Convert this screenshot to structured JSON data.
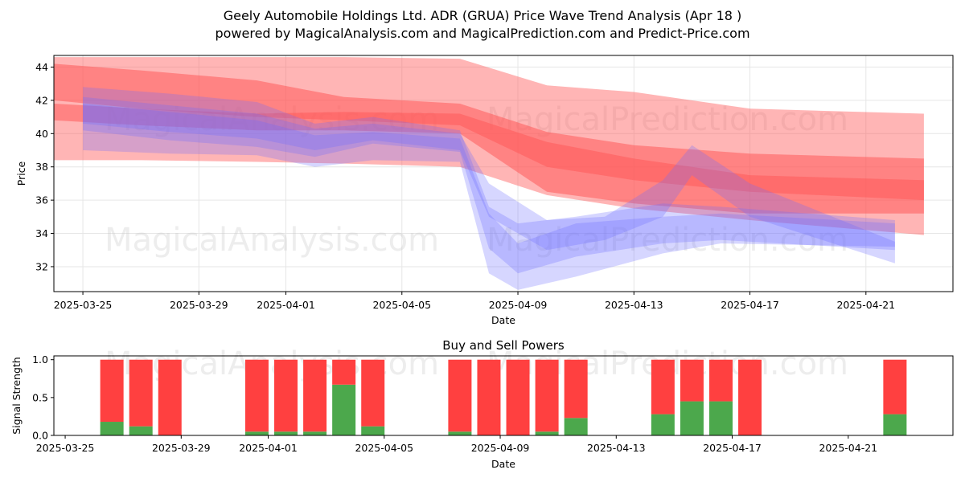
{
  "title_line1": "Geely Automobile Holdings Ltd. ADR (GRUA) Price Wave Trend Analysis (Apr 18 )",
  "title_line2": "powered by MagicalAnalysis.com and MagicalPrediction.com and Predict-Price.com",
  "watermarks": [
    "MagicalAnalysis.com",
    "MagicalPrediction.com"
  ],
  "colors": {
    "sell": "#ff4040",
    "buy": "#4ca84c",
    "red_band": "#ff5a5a",
    "blue_band": "#6a6aff"
  },
  "chart_data": [
    {
      "type": "area",
      "title": "",
      "xlabel": "Date",
      "ylabel": "Price",
      "xlim": [
        "2025-03-24",
        "2025-04-24"
      ],
      "ylim": [
        30.5,
        44.7
      ],
      "x_ticks": [
        "2025-03-25",
        "2025-03-29",
        "2025-04-01",
        "2025-04-05",
        "2025-04-09",
        "2025-04-13",
        "2025-04-17",
        "2025-04-21"
      ],
      "y_ticks": [
        32,
        34,
        36,
        38,
        40,
        42,
        44
      ],
      "grid": true,
      "red_bands": [
        {
          "x": [
            "2025-03-24",
            "2025-03-27",
            "2025-03-31",
            "2025-04-03",
            "2025-04-07",
            "2025-04-10",
            "2025-04-13",
            "2025-04-17",
            "2025-04-23"
          ],
          "upper": [
            44.6,
            44.6,
            44.6,
            44.6,
            44.5,
            42.9,
            42.5,
            41.5,
            41.2
          ],
          "lower": [
            38.4,
            38.4,
            38.3,
            38.2,
            38.0,
            36.3,
            35.5,
            34.8,
            33.9
          ]
        },
        {
          "x": [
            "2025-03-24",
            "2025-03-27",
            "2025-03-31",
            "2025-04-03",
            "2025-04-07",
            "2025-04-10",
            "2025-04-13",
            "2025-04-17",
            "2025-04-23"
          ],
          "upper": [
            44.2,
            43.8,
            43.2,
            42.2,
            41.8,
            40.1,
            39.3,
            38.8,
            38.5
          ],
          "lower": [
            42.0,
            41.5,
            41.0,
            40.8,
            40.5,
            38.0,
            37.2,
            36.5,
            36.0
          ]
        },
        {
          "x": [
            "2025-03-24",
            "2025-03-27",
            "2025-03-31",
            "2025-04-03",
            "2025-04-07",
            "2025-04-10",
            "2025-04-13",
            "2025-04-17",
            "2025-04-23"
          ],
          "upper": [
            41.8,
            41.5,
            41.2,
            41.3,
            41.2,
            39.5,
            38.5,
            37.5,
            37.2
          ],
          "lower": [
            40.8,
            40.5,
            40.2,
            40.2,
            40.0,
            36.5,
            35.8,
            35.2,
            35.2
          ]
        }
      ],
      "blue_bands": [
        {
          "x": [
            "2025-03-25",
            "2025-03-28",
            "2025-03-31",
            "2025-04-02",
            "2025-04-04",
            "2025-04-07",
            "2025-04-08",
            "2025-04-09",
            "2025-04-11",
            "2025-04-14",
            "2025-04-16",
            "2025-04-22"
          ],
          "upper": [
            42.8,
            42.4,
            41.9,
            40.6,
            41.0,
            40.2,
            35.6,
            34.6,
            35.0,
            35.8,
            35.6,
            34.8
          ],
          "lower": [
            40.2,
            39.6,
            39.2,
            38.6,
            39.4,
            38.9,
            33.1,
            31.6,
            32.6,
            33.4,
            33.6,
            33.0
          ]
        },
        {
          "x": [
            "2025-03-25",
            "2025-03-28",
            "2025-03-31",
            "2025-04-02",
            "2025-04-04",
            "2025-04-07",
            "2025-04-08",
            "2025-04-09",
            "2025-04-11",
            "2025-04-14",
            "2025-04-16",
            "2025-04-22"
          ],
          "upper": [
            41.8,
            41.3,
            40.8,
            39.9,
            40.1,
            39.7,
            35.2,
            33.4,
            34.6,
            35.0,
            35.2,
            34.6
          ],
          "lower": [
            39.0,
            38.8,
            38.7,
            38.0,
            38.4,
            38.3,
            31.6,
            30.6,
            31.4,
            32.8,
            33.4,
            33.2
          ]
        },
        {
          "x": [
            "2025-03-25",
            "2025-03-28",
            "2025-03-31",
            "2025-04-02",
            "2025-04-04",
            "2025-04-07",
            "2025-04-08",
            "2025-04-10",
            "2025-04-12",
            "2025-04-14",
            "2025-04-15",
            "2025-04-17",
            "2025-04-22"
          ],
          "upper": [
            42.2,
            41.7,
            41.2,
            40.3,
            40.6,
            40.0,
            37.0,
            34.8,
            35.0,
            37.2,
            39.3,
            37.0,
            33.5
          ],
          "lower": [
            40.6,
            40.1,
            39.7,
            39.0,
            39.6,
            39.0,
            35.0,
            33.0,
            33.6,
            35.0,
            37.5,
            35.0,
            32.2
          ]
        }
      ]
    },
    {
      "type": "bar",
      "title": "Buy and Sell Powers",
      "xlabel": "Date",
      "ylabel": "Signal Strength",
      "ylim": [
        0,
        1.05
      ],
      "y_ticks": [
        "0.0",
        "0.5",
        "1.0"
      ],
      "x_ticks": [
        "2025-03-25",
        "2025-03-29",
        "2025-04-01",
        "2025-04-05",
        "2025-04-09",
        "2025-04-13",
        "2025-04-17",
        "2025-04-21"
      ],
      "categories": [
        "2025-03-26",
        "2025-03-27",
        "2025-03-28",
        "2025-03-31",
        "2025-04-01",
        "2025-04-02",
        "2025-04-03",
        "2025-04-04",
        "2025-04-07",
        "2025-04-08",
        "2025-04-09",
        "2025-04-10",
        "2025-04-11",
        "2025-04-14",
        "2025-04-15",
        "2025-04-16",
        "2025-04-17",
        "2025-04-22"
      ],
      "series": [
        {
          "name": "",
          "values": [
            0.18,
            0.12,
            0.0,
            0.05,
            0.05,
            0.05,
            0.67,
            0.12,
            0.05,
            0.0,
            0.0,
            0.05,
            0.23,
            0.28,
            0.45,
            0.45,
            0.0,
            0.28
          ]
        },
        {
          "name": "",
          "values": [
            0.82,
            0.88,
            1.0,
            0.95,
            0.95,
            0.95,
            0.33,
            0.88,
            0.95,
            1.0,
            1.0,
            0.95,
            0.77,
            0.72,
            0.55,
            0.55,
            1.0,
            0.72
          ]
        }
      ]
    }
  ]
}
